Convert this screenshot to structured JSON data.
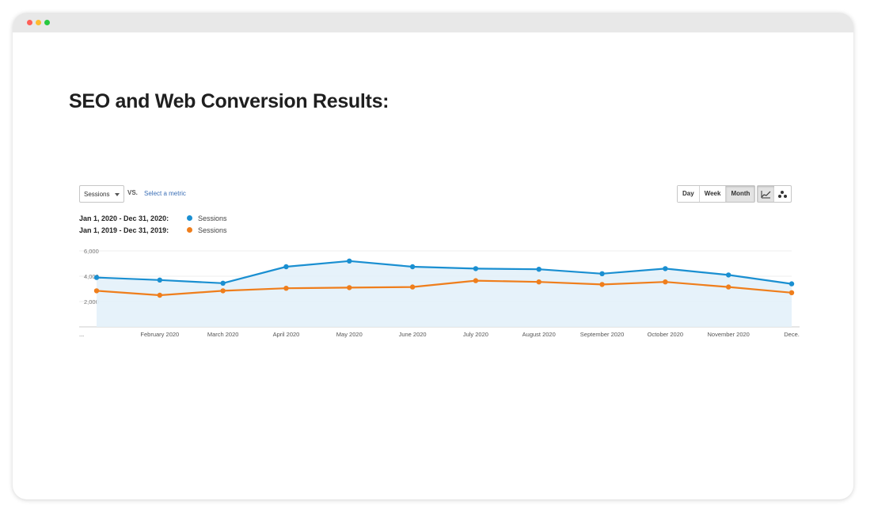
{
  "window": {
    "dot_colors": {
      "close": "#ff5f57",
      "minimize": "#febc2e",
      "maximize": "#28c840"
    }
  },
  "page": {
    "title": "SEO and Web Conversion Results:"
  },
  "analytics": {
    "metric_select": "Sessions",
    "vs_label": "VS.",
    "select_metric_link": "Select a metric",
    "period_buttons": [
      "Day",
      "Week",
      "Month"
    ],
    "active_period": "Month",
    "view_icons": [
      "line-chart-icon",
      "motion-chart-icon"
    ],
    "legend": [
      {
        "range": "Jan 1, 2020 - Dec 31, 2020:",
        "series": "Sessions",
        "color": "#1a8fd1"
      },
      {
        "range": "Jan 1, 2019 - Dec 31, 2019:",
        "series": "Sessions",
        "color": "#ef7e1c"
      }
    ]
  },
  "chart_data": {
    "type": "line",
    "x": [
      "...",
      "February 2020",
      "March 2020",
      "April 2020",
      "May 2020",
      "June 2020",
      "July 2020",
      "August 2020",
      "September 2020",
      "October 2020",
      "November 2020",
      "Dece..."
    ],
    "y_ticks": [
      "6,000",
      "4,000",
      "2,000"
    ],
    "y_tick_values": [
      6000,
      4000,
      2000
    ],
    "ylim": [
      0,
      6000
    ],
    "grid": true,
    "fill_under_first_series": true,
    "series": [
      {
        "name": "Sessions",
        "period": "Jan 1, 2020 - Dec 31, 2020",
        "color": "#1a8fd1",
        "values": [
          3900,
          3700,
          3450,
          4750,
          5200,
          4750,
          4600,
          4550,
          4200,
          4600,
          4100,
          3400
        ]
      },
      {
        "name": "Sessions",
        "period": "Jan 1, 2019 - Dec 31, 2019",
        "color": "#ef7e1c",
        "values": [
          2850,
          2500,
          2850,
          3050,
          3100,
          3150,
          3650,
          3550,
          3350,
          3550,
          3150,
          2700
        ]
      }
    ]
  }
}
